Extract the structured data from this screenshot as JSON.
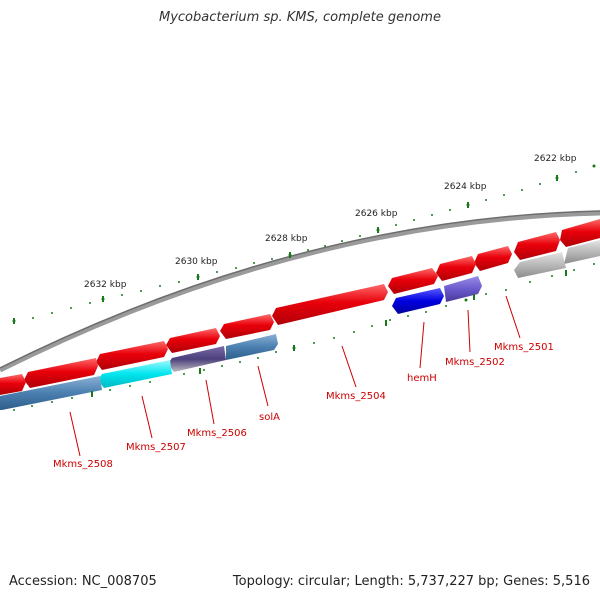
{
  "title": "Mycobacterium sp. KMS, complete genome",
  "footer": {
    "accession": "Accession: NC_008705",
    "summary": "Topology: circular; Length: 5,737,227 bp; Genes: 5,516"
  },
  "ticks": [
    "2622 kbp",
    "2624 kbp",
    "2626 kbp",
    "2628 kbp",
    "2630 kbp",
    "2632 kbp"
  ],
  "genes": [
    "Mkms_2501",
    "Mkms_2502",
    "hemH",
    "Mkms_2504",
    "solA",
    "Mkms_2506",
    "Mkms_2507",
    "Mkms_2508"
  ],
  "colors": {
    "backbone": "#808080",
    "forward": "#e8000a",
    "reverse_default": "#4a7fb0",
    "highlight_blue": "#0000e0",
    "highlight_purple": "#6a5acd",
    "highlight_cyan": "#00e5ee",
    "pseudo_gray": "#b8b8b8",
    "label": "#cc0000",
    "tick": "#1a7a1a"
  }
}
